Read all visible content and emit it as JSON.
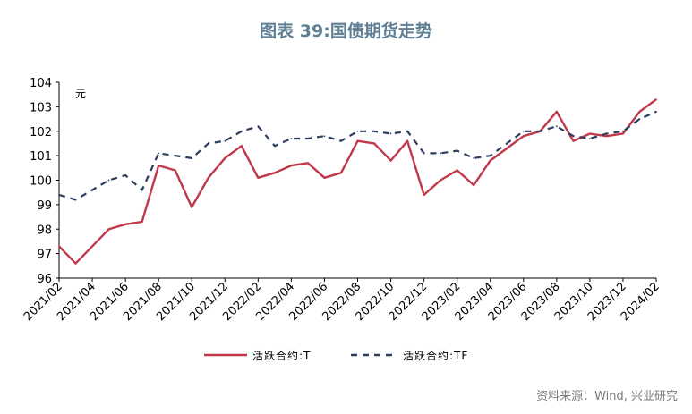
{
  "title": "图表 39:国债期货走势",
  "source": "资料来源：Wind, 兴业研究",
  "chart_data": {
    "type": "line",
    "ylabel": "元",
    "ylim": [
      96,
      104
    ],
    "yticks": [
      "96",
      "97",
      "98",
      "99",
      "100",
      "101",
      "102",
      "103",
      "104"
    ],
    "xlim": [
      "2021/02",
      "2024/02"
    ],
    "categories": [
      "2021/02",
      "2021/04",
      "2021/06",
      "2021/08",
      "2021/10",
      "2021/12",
      "2022/02",
      "2022/04",
      "2022/06",
      "2022/08",
      "2022/10",
      "2022/12",
      "2023/02",
      "2023/04",
      "2023/06",
      "2023/08",
      "2023/10",
      "2023/12",
      "2024/02"
    ],
    "legend_position": "bottom",
    "colors": {
      "T": "#c0394b",
      "TF": "#2c3e5c"
    },
    "series": [
      {
        "name": "活跃合约:T",
        "style": "solid",
        "x": [
          "2021/02",
          "2021/03",
          "2021/04",
          "2021/05",
          "2021/06",
          "2021/07",
          "2021/08",
          "2021/09",
          "2021/10",
          "2021/11",
          "2021/12",
          "2022/01",
          "2022/02",
          "2022/03",
          "2022/04",
          "2022/05",
          "2022/06",
          "2022/07",
          "2022/08",
          "2022/09",
          "2022/10",
          "2022/11",
          "2022/12",
          "2023/01",
          "2023/02",
          "2023/03",
          "2023/04",
          "2023/05",
          "2023/06",
          "2023/07",
          "2023/08",
          "2023/09",
          "2023/10",
          "2023/11",
          "2023/12",
          "2024/01",
          "2024/02"
        ],
        "values": [
          97.3,
          96.6,
          97.3,
          98.0,
          98.2,
          98.3,
          100.6,
          100.4,
          98.9,
          100.1,
          100.9,
          101.4,
          100.1,
          100.3,
          100.6,
          100.7,
          100.1,
          100.3,
          101.6,
          101.5,
          100.8,
          101.6,
          99.4,
          100.0,
          100.4,
          99.8,
          100.8,
          101.3,
          101.8,
          102.0,
          102.8,
          101.6,
          101.9,
          101.8,
          101.9,
          102.8,
          103.3
        ]
      },
      {
        "name": "活跃合约:TF",
        "style": "dashed",
        "x": [
          "2021/02",
          "2021/03",
          "2021/04",
          "2021/05",
          "2021/06",
          "2021/07",
          "2021/08",
          "2021/09",
          "2021/10",
          "2021/11",
          "2021/12",
          "2022/01",
          "2022/02",
          "2022/03",
          "2022/04",
          "2022/05",
          "2022/06",
          "2022/07",
          "2022/08",
          "2022/09",
          "2022/10",
          "2022/11",
          "2022/12",
          "2023/01",
          "2023/02",
          "2023/03",
          "2023/04",
          "2023/05",
          "2023/06",
          "2023/07",
          "2023/08",
          "2023/09",
          "2023/10",
          "2023/11",
          "2023/12",
          "2024/01",
          "2024/02"
        ],
        "values": [
          99.4,
          99.2,
          99.6,
          100.0,
          100.2,
          99.6,
          101.1,
          101.0,
          100.9,
          101.5,
          101.6,
          102.0,
          102.2,
          101.4,
          101.7,
          101.7,
          101.8,
          101.6,
          102.0,
          102.0,
          101.9,
          102.0,
          101.1,
          101.1,
          101.2,
          100.9,
          101.0,
          101.5,
          102.0,
          102.0,
          102.2,
          101.8,
          101.7,
          101.9,
          102.0,
          102.5,
          102.8
        ]
      }
    ]
  }
}
